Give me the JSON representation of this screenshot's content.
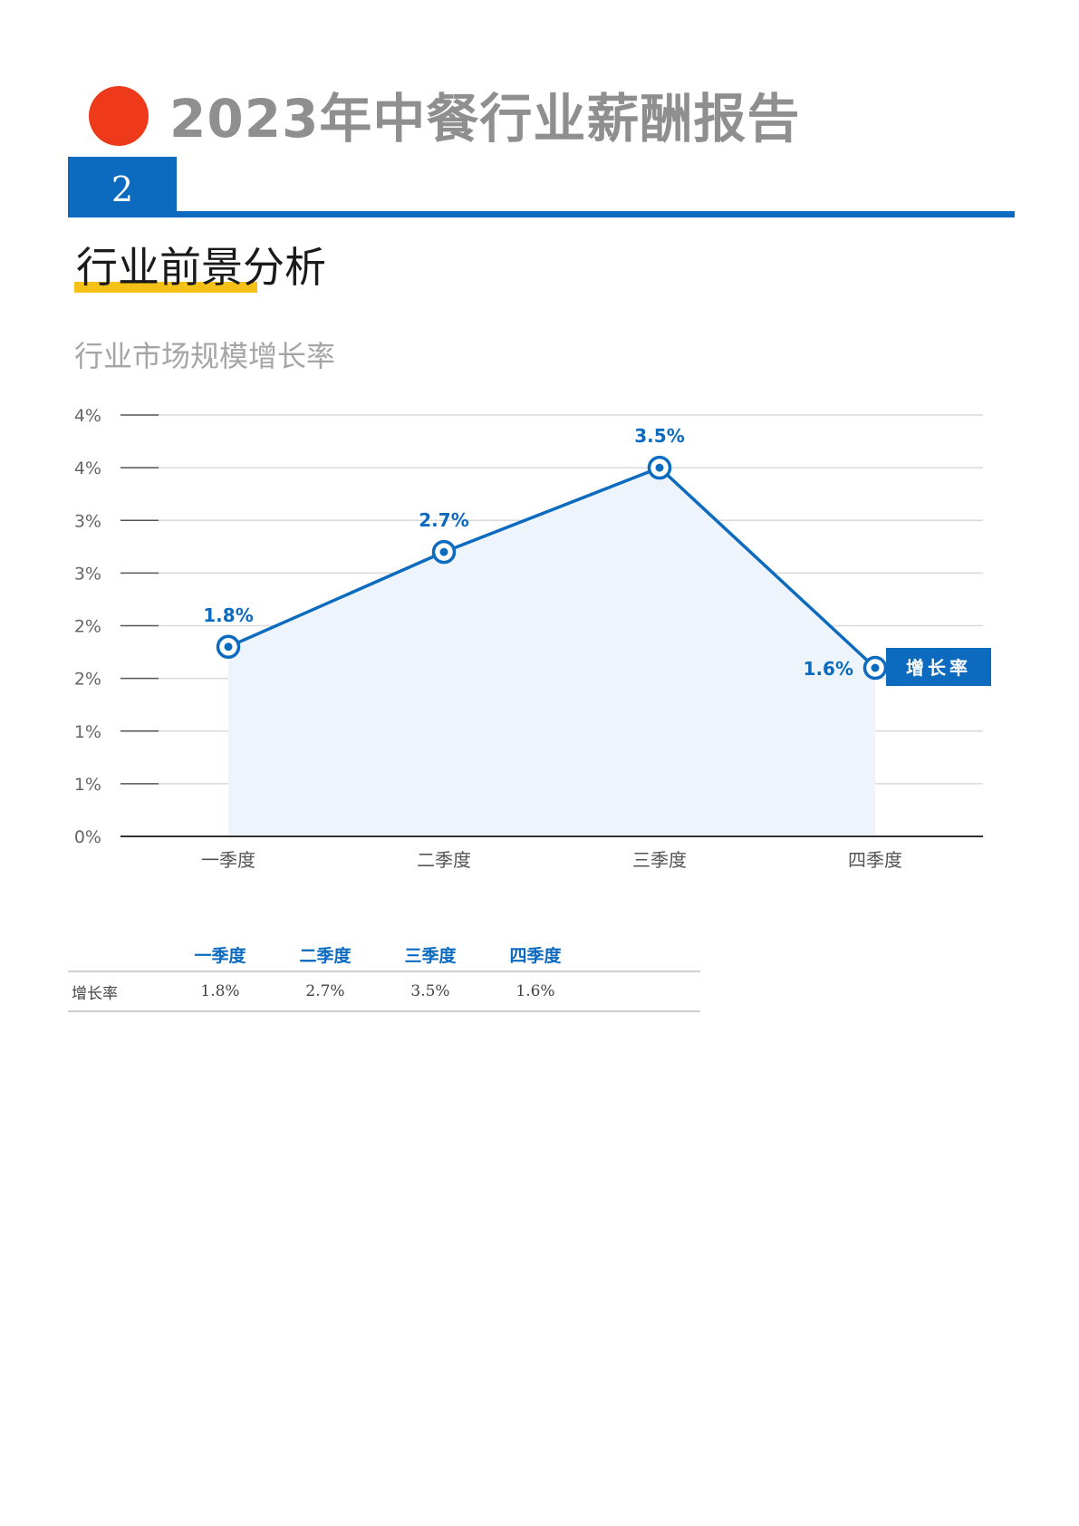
{
  "header": {
    "title": "2023年中餐行业薪酬报告",
    "section_number": "2",
    "section_title": "行业前景分析"
  },
  "colors": {
    "accent_red": "#ee3a1b",
    "accent_blue": "#0c6bbf",
    "highlight_yellow": "#f6c117"
  },
  "chart_data": {
    "type": "area",
    "title": "行业市场规模增长率",
    "categories": [
      "一季度",
      "二季度",
      "三季度",
      "四季度"
    ],
    "series": [
      {
        "name": "增长率",
        "values": [
          1.8,
          2.7,
          3.5,
          1.6
        ],
        "data_labels": [
          "1.8%",
          "2.7%",
          "3.5%",
          "1.6%"
        ]
      }
    ],
    "y_tick_labels": [
      "0%",
      "1%",
      "1%",
      "2%",
      "2%",
      "3%",
      "3%",
      "4%",
      "4%"
    ],
    "ylim": [
      0,
      4
    ],
    "grid": true,
    "legend": "right"
  },
  "table": {
    "headers": [
      "",
      "一季度",
      "二季度",
      "三季度",
      "四季度",
      ""
    ],
    "rows": [
      {
        "label": "增长率",
        "cells": [
          "1.8%",
          "2.7%",
          "3.5%",
          "1.6%",
          ""
        ]
      }
    ]
  }
}
